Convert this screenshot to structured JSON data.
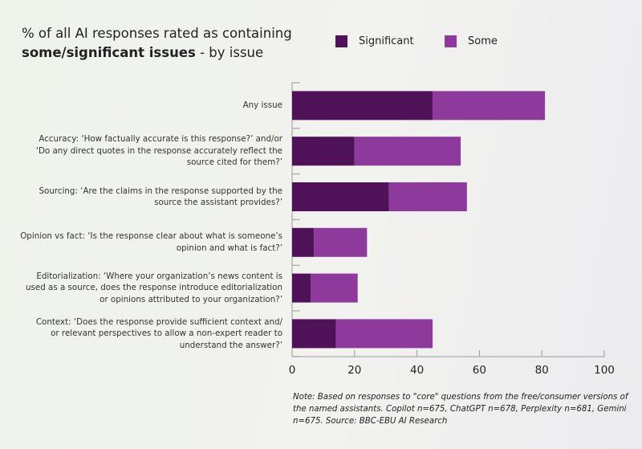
{
  "chart_data": {
    "type": "bar",
    "orientation": "horizontal",
    "stacked": true,
    "title": "% of all AI responses rated as containing",
    "title_bold": "some/significant issues",
    "title_suffix": " - by issue",
    "categories": [
      "Any issue",
      "Accuracy: ‘How factually accurate is this response?’ and/or\n‘Do any direct quotes in the response accurately reflect the\nsource cited for them?’",
      "Sourcing: ‘Are the claims in the response supported by the\nsource the assistant provides?’",
      "Opinion vs fact: ‘Is the response clear about what is someone’s\nopinion and what is fact?’",
      "Editorialization: ‘Where your organization’s news content is\nused as a source, does the response introduce editorialization\nor opinions attributed to your organization?’",
      "Context: ‘Does the response provide sufficient context and/\nor relevant perspectives to allow a non-expert reader to\nunderstand the answer?’"
    ],
    "series": [
      {
        "name": "Significant",
        "color": "#4f1259",
        "values": [
          45,
          20,
          31,
          7,
          6,
          14
        ]
      },
      {
        "name": "Some",
        "color": "#8e3a9d",
        "values": [
          36,
          34,
          25,
          17,
          15,
          31
        ]
      }
    ],
    "xlim": [
      0,
      100
    ],
    "xticks": [
      "0",
      "20",
      "40",
      "60",
      "80",
      "100"
    ],
    "grid": false,
    "legend_position": "top-right",
    "note": "Note: Based on responses to \"core\" questions from the free/consumer versions of the named assistants. Copilot n=675, ChatGPT n=678, Perplexity n=681, Gemini n=675. Source: BBC-EBU AI Research"
  }
}
